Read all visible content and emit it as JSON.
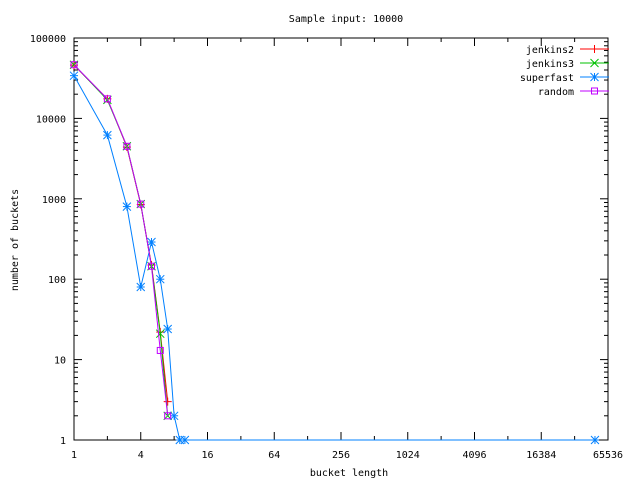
{
  "chart_data": {
    "type": "line",
    "title": "Sample input: 10000",
    "xlabel": "bucket length",
    "ylabel": "number of buckets",
    "x_scale": "log2",
    "y_scale": "log10",
    "xlim": [
      1,
      65536
    ],
    "ylim": [
      1,
      100000
    ],
    "x_ticks": [
      1,
      4,
      16,
      64,
      256,
      1024,
      4096,
      16384,
      65536
    ],
    "x_tick_labels": [
      "1",
      "4",
      "16",
      "64",
      "256",
      "1024",
      "4096",
      "16384",
      "65536"
    ],
    "y_ticks": [
      1,
      10,
      100,
      1000,
      10000,
      100000
    ],
    "y_tick_labels": [
      "1",
      "10",
      "100",
      "1000",
      "10000",
      "100000"
    ],
    "grid": false,
    "legend_position": "top-right",
    "series": [
      {
        "name": "jenkins2",
        "color": "#ff0000",
        "marker": "plus",
        "x": [
          1,
          2,
          3,
          4,
          5,
          6,
          7
        ],
        "y": [
          46000,
          17500,
          4400,
          850,
          150,
          22,
          3
        ]
      },
      {
        "name": "jenkins3",
        "color": "#00c000",
        "marker": "cross",
        "x": [
          1,
          2,
          3,
          4,
          5,
          6,
          7
        ],
        "y": [
          46500,
          17000,
          4500,
          860,
          145,
          21,
          2
        ]
      },
      {
        "name": "superfast",
        "color": "#0080ff",
        "marker": "star",
        "x": [
          1,
          2,
          3,
          4,
          5,
          6,
          7,
          8,
          9,
          10,
          50000
        ],
        "y": [
          34000,
          6200,
          800,
          80,
          290,
          100,
          24,
          2,
          1,
          1,
          1
        ]
      },
      {
        "name": "random",
        "color": "#c000ff",
        "marker": "square",
        "x": [
          1,
          2,
          3,
          4,
          5,
          6,
          7
        ],
        "y": [
          46500,
          17500,
          4500,
          860,
          145,
          13,
          2
        ]
      }
    ]
  }
}
